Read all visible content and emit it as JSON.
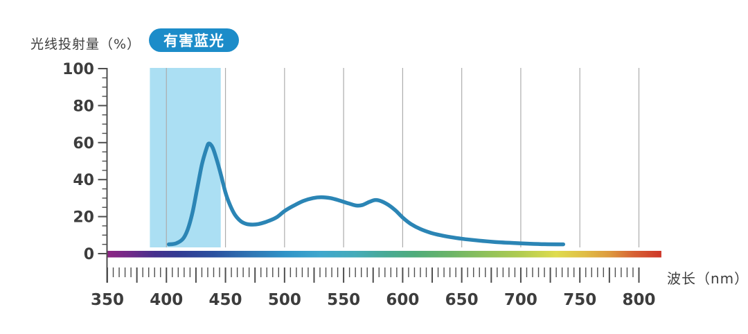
{
  "page": {
    "background": "#ffffff"
  },
  "y_axis_title": "光线投射量（%）",
  "badge": {
    "label": "有害蓝光",
    "color": "#1c8cc9",
    "text_color": "#ffffff"
  },
  "x_axis_title": "波长（nm）",
  "chart_data": {
    "type": "line",
    "title": "有害蓝光",
    "xlabel": "波长（nm）",
    "ylabel": "光线投射量（%）",
    "x_axis": {
      "min": 350,
      "max": 800,
      "unit": "nm",
      "tick_labels": [
        350,
        400,
        450,
        500,
        550,
        600,
        650,
        700,
        750,
        800
      ],
      "minor_tick_step": 5,
      "long_tick_step": 25,
      "label_step": 50
    },
    "y_axis": {
      "min": 0,
      "max": 100,
      "unit": "%",
      "tick_labels": [
        0,
        20,
        40,
        60,
        80,
        100
      ],
      "minor_tick_step": 5,
      "major_tick_step": 20
    },
    "grid": true,
    "gridlines_nm": [
      400,
      450,
      500,
      550,
      600,
      650,
      700,
      750,
      800
    ],
    "highlight_band": {
      "name": "有害蓝光",
      "from_nm": 386,
      "to_nm": 446,
      "color": "#abdff3"
    },
    "series": [
      {
        "name": "光线投射量",
        "color": "#2b85b5",
        "stroke_width": 5.5,
        "points": [
          [
            402,
            5
          ],
          [
            408,
            5.5
          ],
          [
            414,
            8
          ],
          [
            418,
            13
          ],
          [
            422,
            22
          ],
          [
            426,
            35
          ],
          [
            430,
            48
          ],
          [
            434,
            57
          ],
          [
            436,
            59.5
          ],
          [
            439,
            57.5
          ],
          [
            442,
            52
          ],
          [
            446,
            43
          ],
          [
            450,
            33
          ],
          [
            454,
            26
          ],
          [
            458,
            21
          ],
          [
            463,
            17.5
          ],
          [
            468,
            16
          ],
          [
            473,
            15.7
          ],
          [
            478,
            16
          ],
          [
            485,
            17.3
          ],
          [
            493,
            19.5
          ],
          [
            500,
            23
          ],
          [
            508,
            26
          ],
          [
            516,
            28.5
          ],
          [
            524,
            30
          ],
          [
            531,
            30.5
          ],
          [
            539,
            30
          ],
          [
            547,
            28.6
          ],
          [
            555,
            27
          ],
          [
            561,
            26
          ],
          [
            566,
            26.3
          ],
          [
            572,
            28
          ],
          [
            577,
            29
          ],
          [
            582,
            28.3
          ],
          [
            588,
            26.3
          ],
          [
            594,
            23.3
          ],
          [
            600,
            19.5
          ],
          [
            607,
            16
          ],
          [
            615,
            13.3
          ],
          [
            624,
            11.2
          ],
          [
            633,
            9.8
          ],
          [
            643,
            8.7
          ],
          [
            653,
            7.8
          ],
          [
            665,
            7
          ],
          [
            678,
            6.3
          ],
          [
            692,
            5.8
          ],
          [
            706,
            5.4
          ],
          [
            720,
            5.1
          ],
          [
            736,
            5
          ]
        ]
      }
    ],
    "spectrum_bar": {
      "from_nm": 350,
      "to_nm": 819,
      "stops": [
        {
          "nm": 350,
          "color": "#8d2583"
        },
        {
          "nm": 370,
          "color": "#6f2a89"
        },
        {
          "nm": 390,
          "color": "#46308d"
        },
        {
          "nm": 410,
          "color": "#323b93"
        },
        {
          "nm": 440,
          "color": "#2b519f"
        },
        {
          "nm": 470,
          "color": "#2f74b3"
        },
        {
          "nm": 500,
          "color": "#2f93c7"
        },
        {
          "nm": 530,
          "color": "#3fa7cd"
        },
        {
          "nm": 560,
          "color": "#45abb9"
        },
        {
          "nm": 585,
          "color": "#48aa96"
        },
        {
          "nm": 610,
          "color": "#4fac7b"
        },
        {
          "nm": 640,
          "color": "#6bb468"
        },
        {
          "nm": 670,
          "color": "#8fc15b"
        },
        {
          "nm": 700,
          "color": "#b1cc50"
        },
        {
          "nm": 730,
          "color": "#dfdc4e"
        },
        {
          "nm": 755,
          "color": "#e0bc45"
        },
        {
          "nm": 775,
          "color": "#dd9a3e"
        },
        {
          "nm": 795,
          "color": "#d76334"
        },
        {
          "nm": 819,
          "color": "#ce3629"
        }
      ]
    },
    "colors": {
      "axis": "#4d4d4d",
      "grid": "#acacac",
      "tick_text": "#3d3d3d"
    }
  }
}
